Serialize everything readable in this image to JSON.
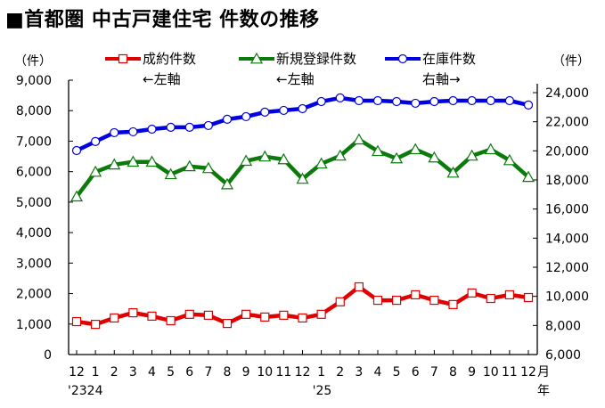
{
  "chart_data": {
    "type": "line",
    "title": "■首都圏 中古戸建住宅 件数の推移",
    "left_axis": {
      "unit_label": "（件）",
      "ylim": [
        0,
        9000
      ],
      "ticks": [
        "9,000",
        "8,000",
        "7,000",
        "6,000",
        "5,000",
        "4,000",
        "3,000",
        "2,000",
        "1,000",
        "0"
      ]
    },
    "right_axis": {
      "unit_label": "（件）",
      "ylim": [
        6000,
        24000
      ],
      "ticks": [
        "24,000",
        "22,000",
        "20,000",
        "18,000",
        "16,000",
        "14,000",
        "12,000",
        "10,000",
        "8,000",
        "6,000"
      ]
    },
    "x_tick_labels": [
      "12",
      "1",
      "2",
      "3",
      "4",
      "5",
      "6",
      "7",
      "8",
      "9",
      "10",
      "11",
      "12",
      "1",
      "2",
      "3",
      "4",
      "5",
      "6",
      "7",
      "8",
      "9",
      "10",
      "11",
      "12"
    ],
    "x_year_labels": [
      {
        "index": 0,
        "label": "'2324"
      },
      {
        "index": 13,
        "label": "'25"
      }
    ],
    "x_unit_month": "月",
    "x_unit_year": "年",
    "categories": [
      "2023-12",
      "2024-01",
      "2024-02",
      "2024-03",
      "2024-04",
      "2024-05",
      "2024-06",
      "2024-07",
      "2024-08",
      "2024-09",
      "2024-10",
      "2024-11",
      "2024-12",
      "2025-01",
      "2025-02",
      "2025-03",
      "2025-04",
      "2025-05",
      "2025-06",
      "2025-07",
      "2025-08",
      "2025-09",
      "2025-10",
      "2025-11",
      "2025-12"
    ],
    "series": [
      {
        "name": "成約件数",
        "axis_note": "←左軸",
        "axis": "left",
        "color": "#e00000",
        "marker": "square",
        "values": [
          1080,
          990,
          1200,
          1370,
          1260,
          1110,
          1320,
          1290,
          1020,
          1320,
          1230,
          1290,
          1200,
          1320,
          1730,
          2220,
          1780,
          1780,
          1960,
          1780,
          1640,
          2020,
          1840,
          1960,
          1870
        ]
      },
      {
        "name": "新規登録件数",
        "axis_note": "←左軸",
        "axis": "left",
        "color": "#0a7a0a",
        "marker": "triangle",
        "values": [
          5180,
          5990,
          6230,
          6320,
          6320,
          5910,
          6170,
          6110,
          5580,
          6350,
          6490,
          6400,
          5760,
          6260,
          6520,
          7050,
          6670,
          6430,
          6730,
          6460,
          5960,
          6520,
          6730,
          6370,
          5820
        ]
      },
      {
        "name": "在庫件数",
        "axis_note": "右軸→",
        "axis": "right",
        "color": "#0000e0",
        "marker": "circle",
        "values": [
          20020,
          20640,
          21250,
          21310,
          21490,
          21620,
          21620,
          21740,
          22170,
          22350,
          22660,
          22780,
          22900,
          23390,
          23640,
          23450,
          23450,
          23390,
          23270,
          23390,
          23450,
          23450,
          23450,
          23450,
          23150
        ]
      }
    ],
    "legend_position": "top",
    "grid": false
  }
}
